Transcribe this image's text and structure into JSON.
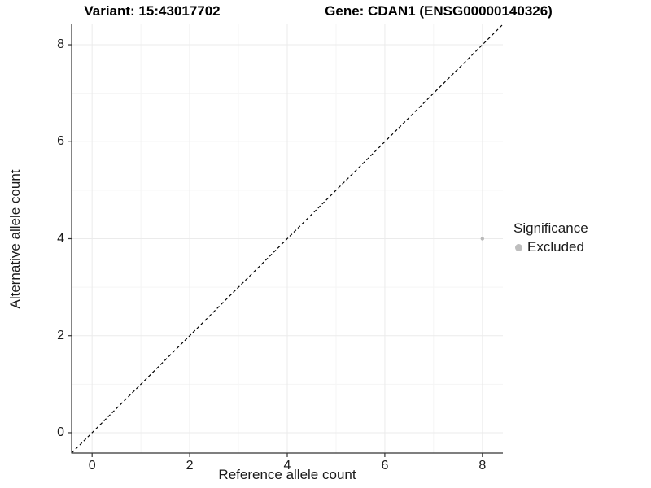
{
  "chart_data": {
    "type": "scatter",
    "title_left": "Variant: 15:43017702",
    "title_right": "Gene: CDAN1 (ENSG00000140326)",
    "xlabel": "Reference allele count",
    "ylabel": "Alternative allele count",
    "xlim": [
      -0.42,
      8.42
    ],
    "ylim": [
      -0.42,
      8.42
    ],
    "xticks": [
      0,
      2,
      4,
      6,
      8
    ],
    "yticks": [
      0,
      2,
      4,
      6,
      8
    ],
    "xticks_minor": [
      1,
      3,
      5,
      7
    ],
    "yticks_minor": [
      1,
      3,
      5,
      7
    ],
    "grid": true,
    "legend_position": "right",
    "identity_line": {
      "style": "dashed",
      "from": [
        -0.42,
        -0.42
      ],
      "to": [
        8.42,
        8.42
      ]
    },
    "series": [
      {
        "name": "Excluded",
        "points": [
          {
            "x": 8,
            "y": 4
          }
        ]
      }
    ],
    "legend": {
      "title": "Significance",
      "entries": [
        {
          "label": "Excluded",
          "color": "#bebebe"
        }
      ]
    }
  },
  "colors": {
    "point_excluded": "#b9b9b9",
    "legend_key": "#bebebe",
    "grid_major": "#ebebeb",
    "grid_minor": "#f5f5f5",
    "axis_line": "#333333",
    "identity_line": "#000000",
    "background": "#ffffff"
  }
}
